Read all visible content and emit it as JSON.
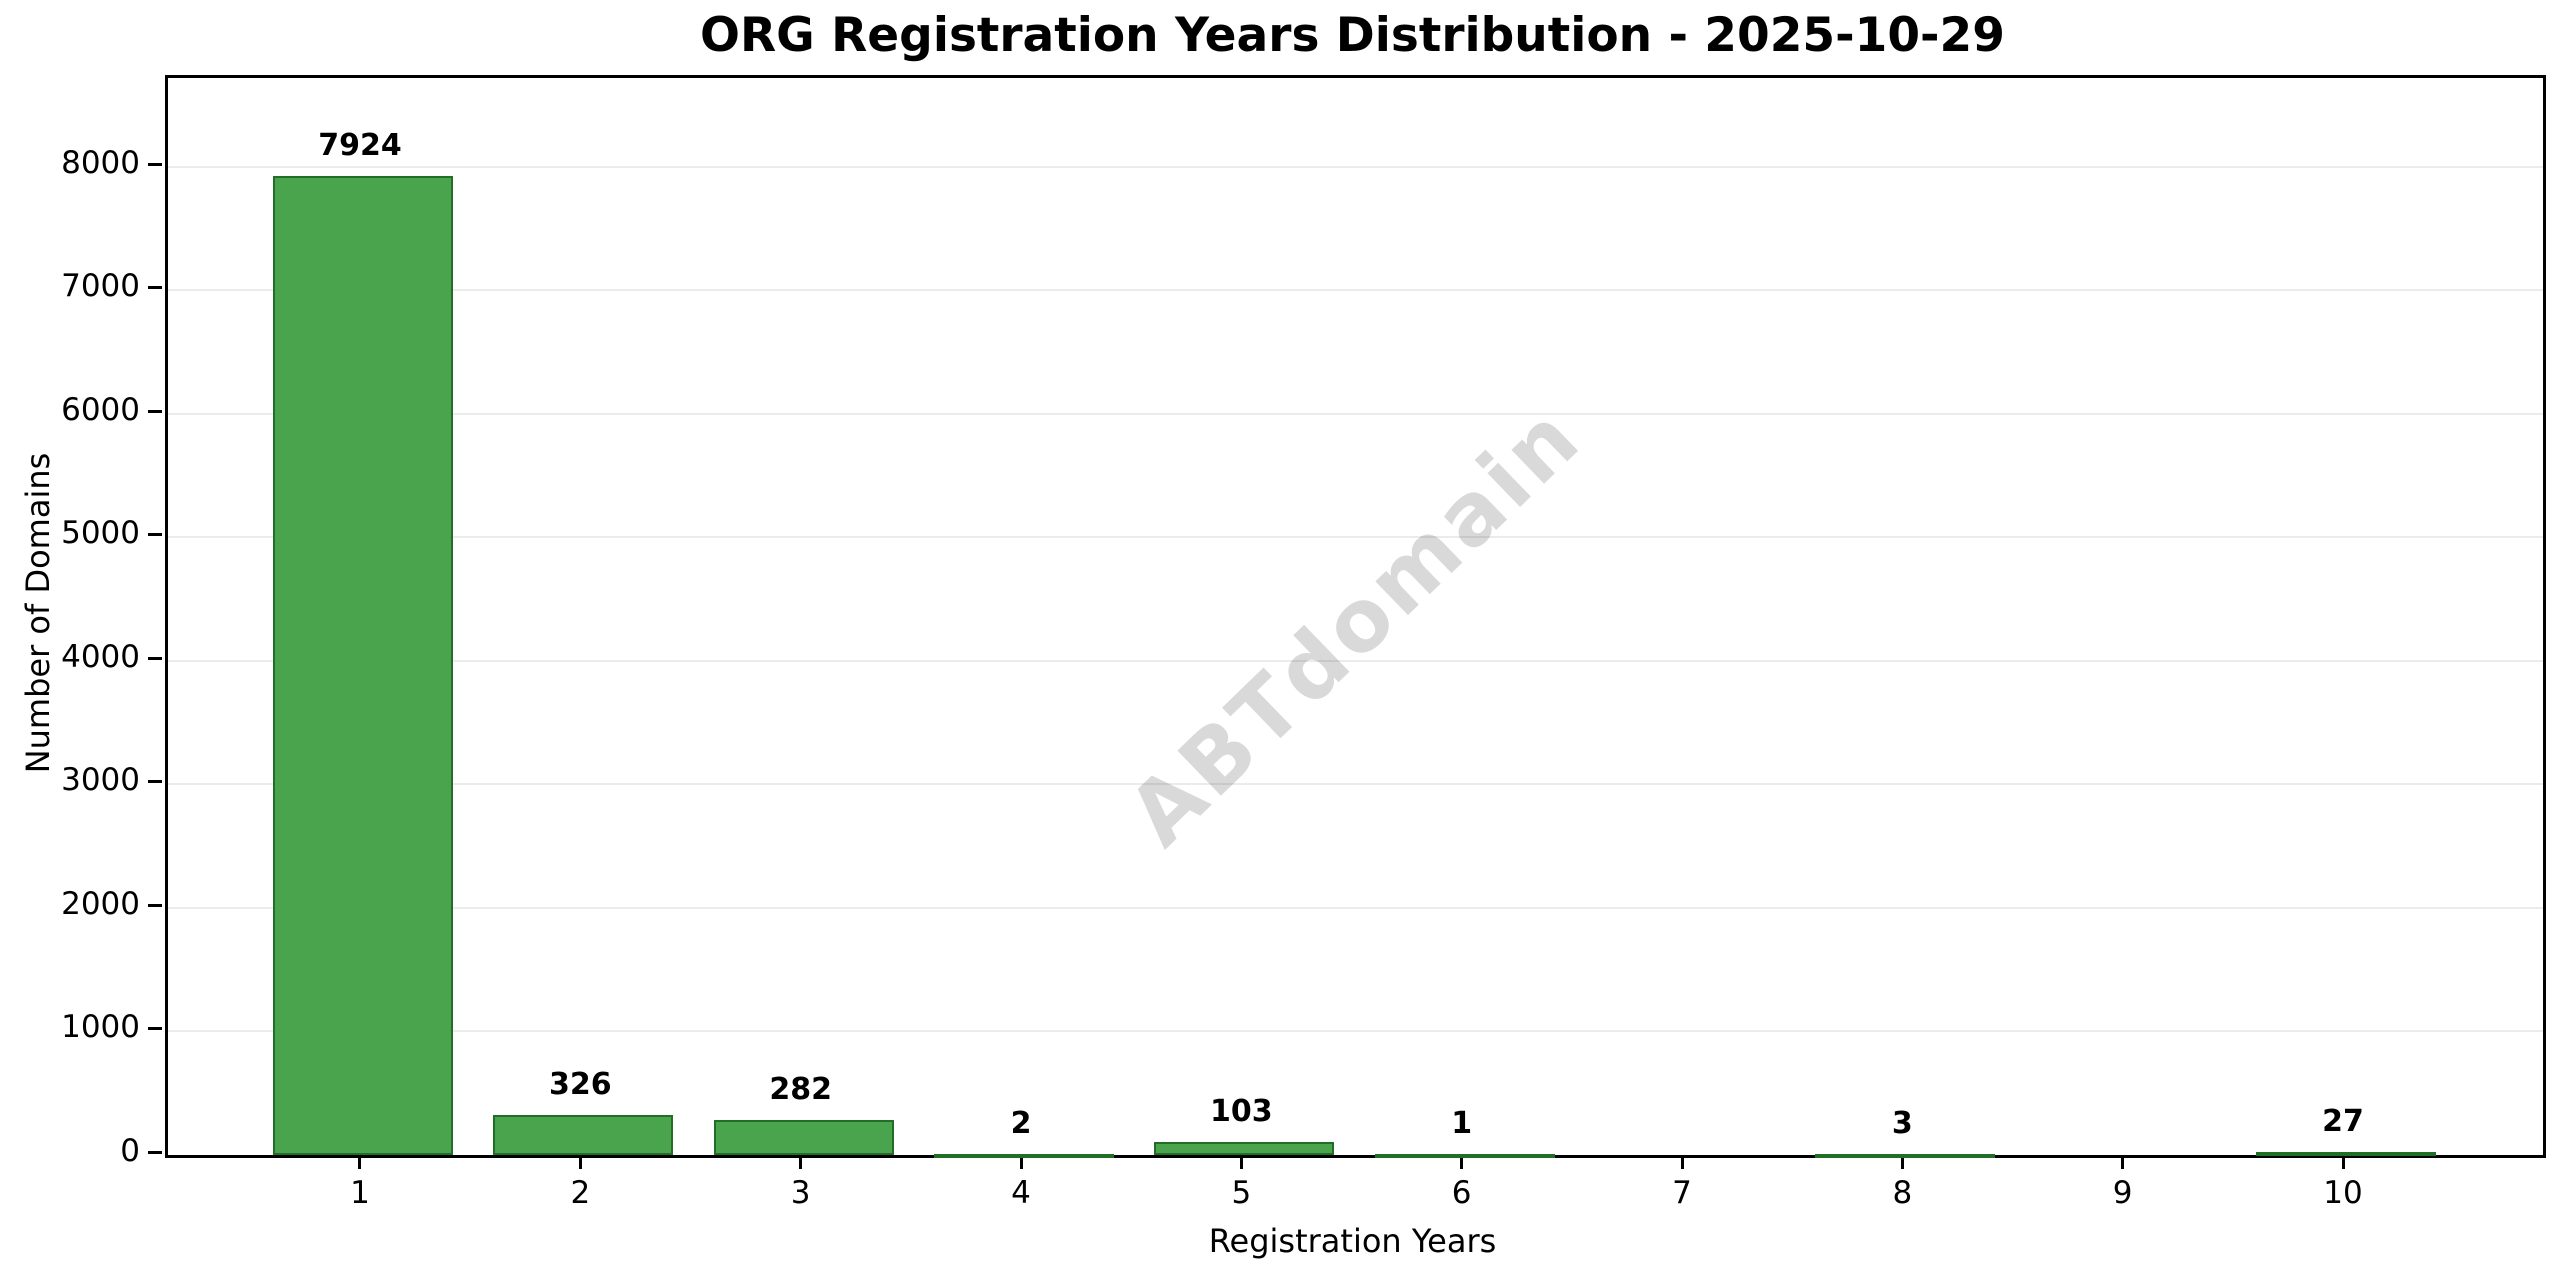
{
  "chart_data": {
    "type": "bar",
    "title": "ORG Registration Years Distribution - 2025-10-29",
    "xlabel": "Registration Years",
    "ylabel": "Number of Domains",
    "watermark": "ABTdomain",
    "categories": [
      1,
      2,
      3,
      4,
      5,
      6,
      7,
      8,
      9,
      10
    ],
    "values": [
      7924,
      326,
      282,
      2,
      103,
      1,
      null,
      3,
      null,
      27
    ],
    "bar_value_labels": [
      "7924",
      "326",
      "282",
      "2",
      "103",
      "1",
      "",
      "3",
      "",
      "27"
    ],
    "y_ticks": [
      0,
      1000,
      2000,
      3000,
      4000,
      5000,
      6000,
      7000,
      8000
    ],
    "ylim": [
      0,
      8720
    ],
    "xlim": [
      0.115,
      10.894
    ],
    "grid": "horizontal-light-gray",
    "legend": "none",
    "colors": {
      "bar_fill": "#4AA44E",
      "bar_edge": "#226E26",
      "gridline": "#ebebeb",
      "text": "#000000",
      "watermark": "rgba(0,0,0,0.15)",
      "background": "#ffffff"
    }
  }
}
